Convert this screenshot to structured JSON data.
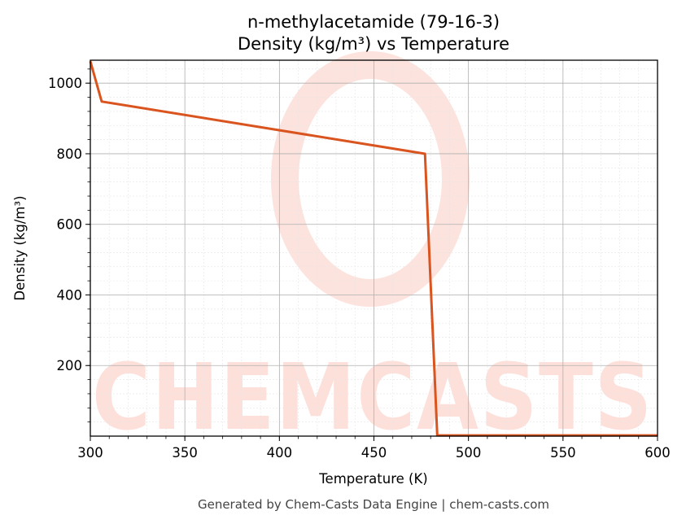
{
  "chart_data": {
    "type": "line",
    "title_line1": "n-methylacetamide (79-16-3)",
    "title_line2": "Density (kg/m³) vs Temperature",
    "xlabel": "Temperature (K)",
    "ylabel": "Density (kg/m³)",
    "xlim": [
      300,
      600
    ],
    "ylim": [
      0,
      1065
    ],
    "x_ticks": [
      300,
      350,
      400,
      450,
      500,
      550,
      600
    ],
    "y_ticks": [
      200,
      400,
      600,
      800,
      1000
    ],
    "grid": true,
    "series": [
      {
        "color": "#d9541e",
        "x": [
          300.0,
          306.0,
          477.0,
          483.5,
          600.0
        ],
        "y": [
          1062,
          948,
          800,
          2,
          2
        ]
      }
    ]
  },
  "watermark": {
    "text": "CHEMCASTS",
    "color": "#fde0da"
  },
  "footer": "Generated by Chem-Casts Data Engine | chem-casts.com"
}
